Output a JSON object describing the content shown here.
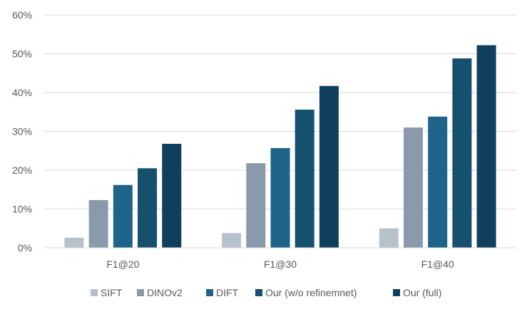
{
  "chart_data": {
    "type": "bar",
    "categories": [
      "F1@20",
      "F1@30",
      "F1@40"
    ],
    "series": [
      {
        "name": "SIFT",
        "color": "#b7c1cc",
        "values": [
          2.6,
          3.8,
          5.0
        ]
      },
      {
        "name": "DINOv2",
        "color": "#8a9aab",
        "values": [
          12.3,
          21.8,
          31.0
        ]
      },
      {
        "name": "DIFT",
        "color": "#1e6389",
        "values": [
          16.2,
          25.7,
          33.8
        ]
      },
      {
        "name": "Our (w/o refinemnet)",
        "color": "#16506f",
        "values": [
          20.5,
          35.6,
          48.8
        ]
      },
      {
        "name": "Our (full)",
        "color": "#0f3f5c",
        "values": [
          26.8,
          41.7,
          52.2
        ]
      }
    ],
    "y_ticks": [
      "0%",
      "10%",
      "20%",
      "30%",
      "40%",
      "50%",
      "60%"
    ],
    "ylim": [
      0,
      60
    ],
    "y_unit": "%",
    "grid": true,
    "legend_position": "bottom"
  }
}
